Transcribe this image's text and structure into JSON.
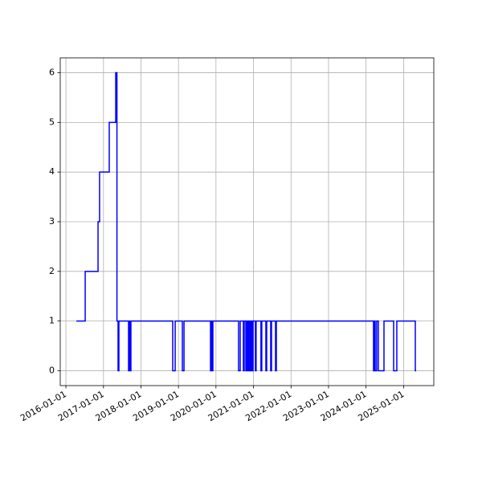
{
  "chart_data": {
    "type": "step",
    "x": [
      "2016-04-12",
      "2016-07-07",
      "2016-11-09",
      "2016-11-24",
      "2017-02-26",
      "2017-04-30",
      "2017-05-12",
      "2017-05-23",
      "2017-05-31",
      "2017-09-02",
      "2017-09-10",
      "2017-09-18",
      "2017-09-25",
      "2018-11-06",
      "2018-11-30",
      "2019-02-08",
      "2019-02-24",
      "2019-11-09",
      "2019-11-16",
      "2019-11-24",
      "2019-12-02",
      "2020-08-08",
      "2020-08-24",
      "2020-09-24",
      "2020-10-02",
      "2020-10-18",
      "2020-10-26",
      "2020-11-02",
      "2020-11-10",
      "2020-11-18",
      "2020-11-26",
      "2020-12-04",
      "2020-12-11",
      "2020-12-19",
      "2020-12-27",
      "2021-01-19",
      "2021-01-26",
      "2021-03-14",
      "2021-03-22",
      "2021-05-01",
      "2021-05-09",
      "2021-06-17",
      "2021-06-25",
      "2021-08-03",
      "2021-08-11",
      "2024-03-14",
      "2024-03-22",
      "2024-03-30",
      "2024-04-14",
      "2024-04-30",
      "2024-06-24",
      "2024-09-26",
      "2024-10-27",
      "2025-04-25",
      "2025-05-03"
    ],
    "series": [
      {
        "color": "#0000ff",
        "values": [
          1,
          2,
          3,
          4,
          5,
          6,
          1,
          0,
          1,
          0,
          1,
          0,
          1,
          0,
          1,
          0,
          1,
          0,
          1,
          0,
          1,
          0,
          1,
          0,
          1,
          0,
          1,
          0,
          1,
          0,
          1,
          0,
          1,
          0,
          1,
          0,
          1,
          0,
          1,
          0,
          1,
          0,
          1,
          0,
          1,
          0,
          1,
          0,
          1,
          0,
          1,
          0,
          1,
          0,
          0
        ]
      }
    ],
    "xlim": [
      "2015-11-07",
      "2025-10-22"
    ],
    "xticks": [
      "2016-01-01",
      "2017-01-01",
      "2018-01-01",
      "2019-01-01",
      "2020-01-01",
      "2021-01-01",
      "2022-01-01",
      "2023-01-01",
      "2024-01-01",
      "2025-01-01"
    ],
    "ylim": [
      -0.3,
      6.3
    ],
    "yticks": [
      0,
      1,
      2,
      3,
      4,
      5,
      6
    ],
    "grid": true
  }
}
